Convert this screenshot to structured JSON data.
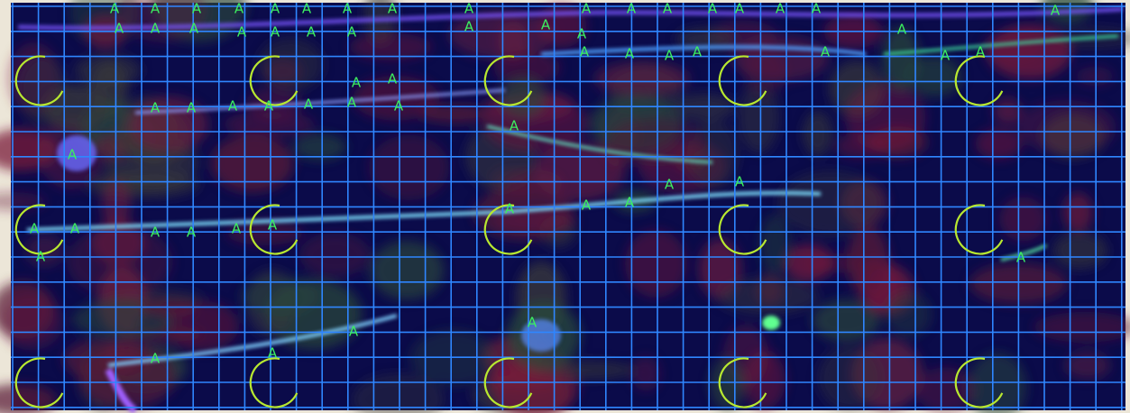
{
  "image": {
    "markers": [
      "A",
      "A",
      "A",
      "A",
      "A",
      "A",
      "A",
      "A",
      "A",
      "A",
      "A",
      "A",
      "A",
      "A",
      "A",
      "A",
      "A",
      "A",
      "A",
      "A",
      "A",
      "A",
      "A",
      "A",
      "A",
      "A",
      "A",
      "A",
      "A",
      "A",
      "A",
      "A",
      "A",
      "A",
      "A",
      "A",
      "A",
      "A",
      "A",
      "A",
      "A",
      "A",
      "A",
      "A",
      "A",
      "A",
      "A",
      "A",
      "A",
      "A",
      "A",
      "A",
      "A",
      "A",
      "A",
      "A",
      "A",
      "A",
      "A",
      "A",
      "A",
      "A",
      "A"
    ]
  }
}
